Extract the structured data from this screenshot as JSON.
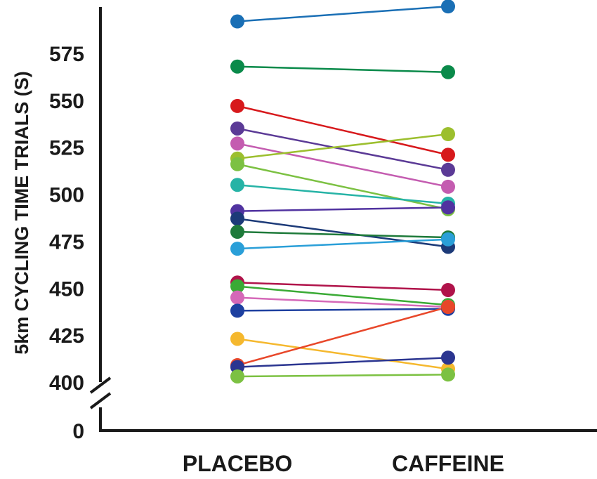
{
  "chart_data": {
    "type": "line",
    "ylabel": "5km CYCLING TIME TRIALS (S)",
    "categories": [
      "PLACEBO",
      "CAFFEINE"
    ],
    "y_ticks": [
      "0",
      "400",
      "425",
      "450",
      "475",
      "500",
      "525",
      "550",
      "575"
    ],
    "ylim": [
      400,
      600
    ],
    "axis_break": true,
    "grid": false,
    "series": [
      {
        "color": "#1a6fb5",
        "values": [
          592,
          600
        ]
      },
      {
        "color": "#0a8a4a",
        "values": [
          568,
          565
        ]
      },
      {
        "color": "#d7191c",
        "values": [
          547,
          521
        ]
      },
      {
        "color": "#5b3a96",
        "values": [
          535,
          513
        ]
      },
      {
        "color": "#c45cb0",
        "values": [
          527,
          504
        ]
      },
      {
        "color": "#9cbf2e",
        "values": [
          519,
          532
        ]
      },
      {
        "color": "#7cc142",
        "values": [
          516,
          492
        ]
      },
      {
        "color": "#26b3a6",
        "values": [
          505,
          495
        ]
      },
      {
        "color": "#5133a0",
        "values": [
          491,
          493
        ]
      },
      {
        "color": "#1c3a78",
        "values": [
          487,
          472
        ]
      },
      {
        "color": "#1e7a3a",
        "values": [
          480,
          477
        ]
      },
      {
        "color": "#2a9fd8",
        "values": [
          471,
          476
        ]
      },
      {
        "color": "#b0134a",
        "values": [
          453,
          449
        ]
      },
      {
        "color": "#3aaa35",
        "values": [
          451,
          441
        ]
      },
      {
        "color": "#d568b8",
        "values": [
          445,
          440
        ]
      },
      {
        "color": "#1e40a0",
        "values": [
          438,
          439
        ]
      },
      {
        "color": "#f5b82e",
        "values": [
          423,
          407
        ]
      },
      {
        "color": "#e8472a",
        "values": [
          409,
          440
        ]
      },
      {
        "color": "#2b3590",
        "values": [
          408,
          413
        ]
      },
      {
        "color": "#7cc142",
        "values": [
          403,
          404
        ]
      }
    ]
  }
}
